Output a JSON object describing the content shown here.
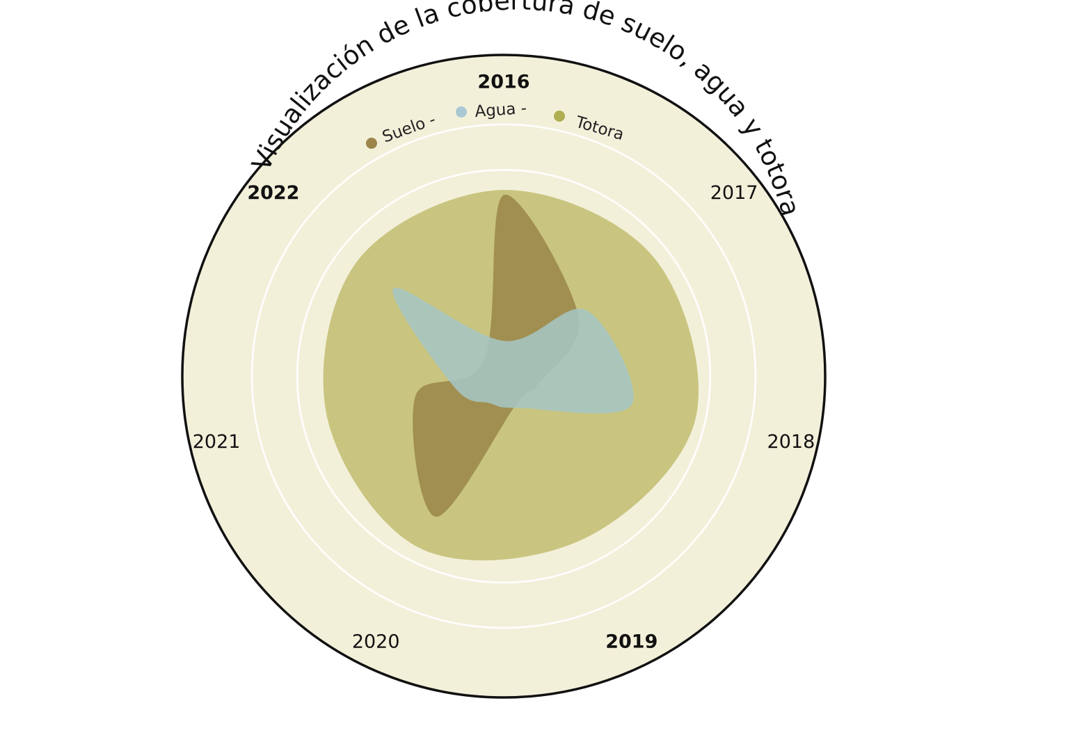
{
  "chart_data": {
    "type": "radar",
    "title": "Visualización de la cobertura de suelo, agua y totora",
    "categories": [
      "2016",
      "2017",
      "2018",
      "2019",
      "2020",
      "2021",
      "2022"
    ],
    "highlighted_categories": [
      "2016",
      "2019",
      "2022"
    ],
    "legend": [
      {
        "label": "Suelo -",
        "color": "#9c844a"
      },
      {
        "label": "Agua -",
        "color": "#a8c8d4"
      },
      {
        "label": "Totora",
        "color": "#b0ae52"
      }
    ],
    "series": [
      {
        "name": "Totora",
        "color": "#c6c27b",
        "values": [
          0.74,
          0.76,
          0.78,
          0.72,
          0.76,
          0.72,
          0.74
        ]
      },
      {
        "name": "Suelo",
        "color": "#9c884c",
        "values": [
          0.72,
          0.38,
          0.14,
          0.12,
          0.62,
          0.36,
          0.1
        ]
      },
      {
        "name": "Agua",
        "color": "#a6c4c0",
        "values": [
          0.14,
          0.42,
          0.52,
          0.14,
          0.12,
          0.2,
          0.56
        ]
      }
    ],
    "rlim": [
      0,
      1
    ],
    "grid": true,
    "background_color": "#f3f0da",
    "gridline_color": "#ffffff",
    "border_color": "#111111"
  }
}
